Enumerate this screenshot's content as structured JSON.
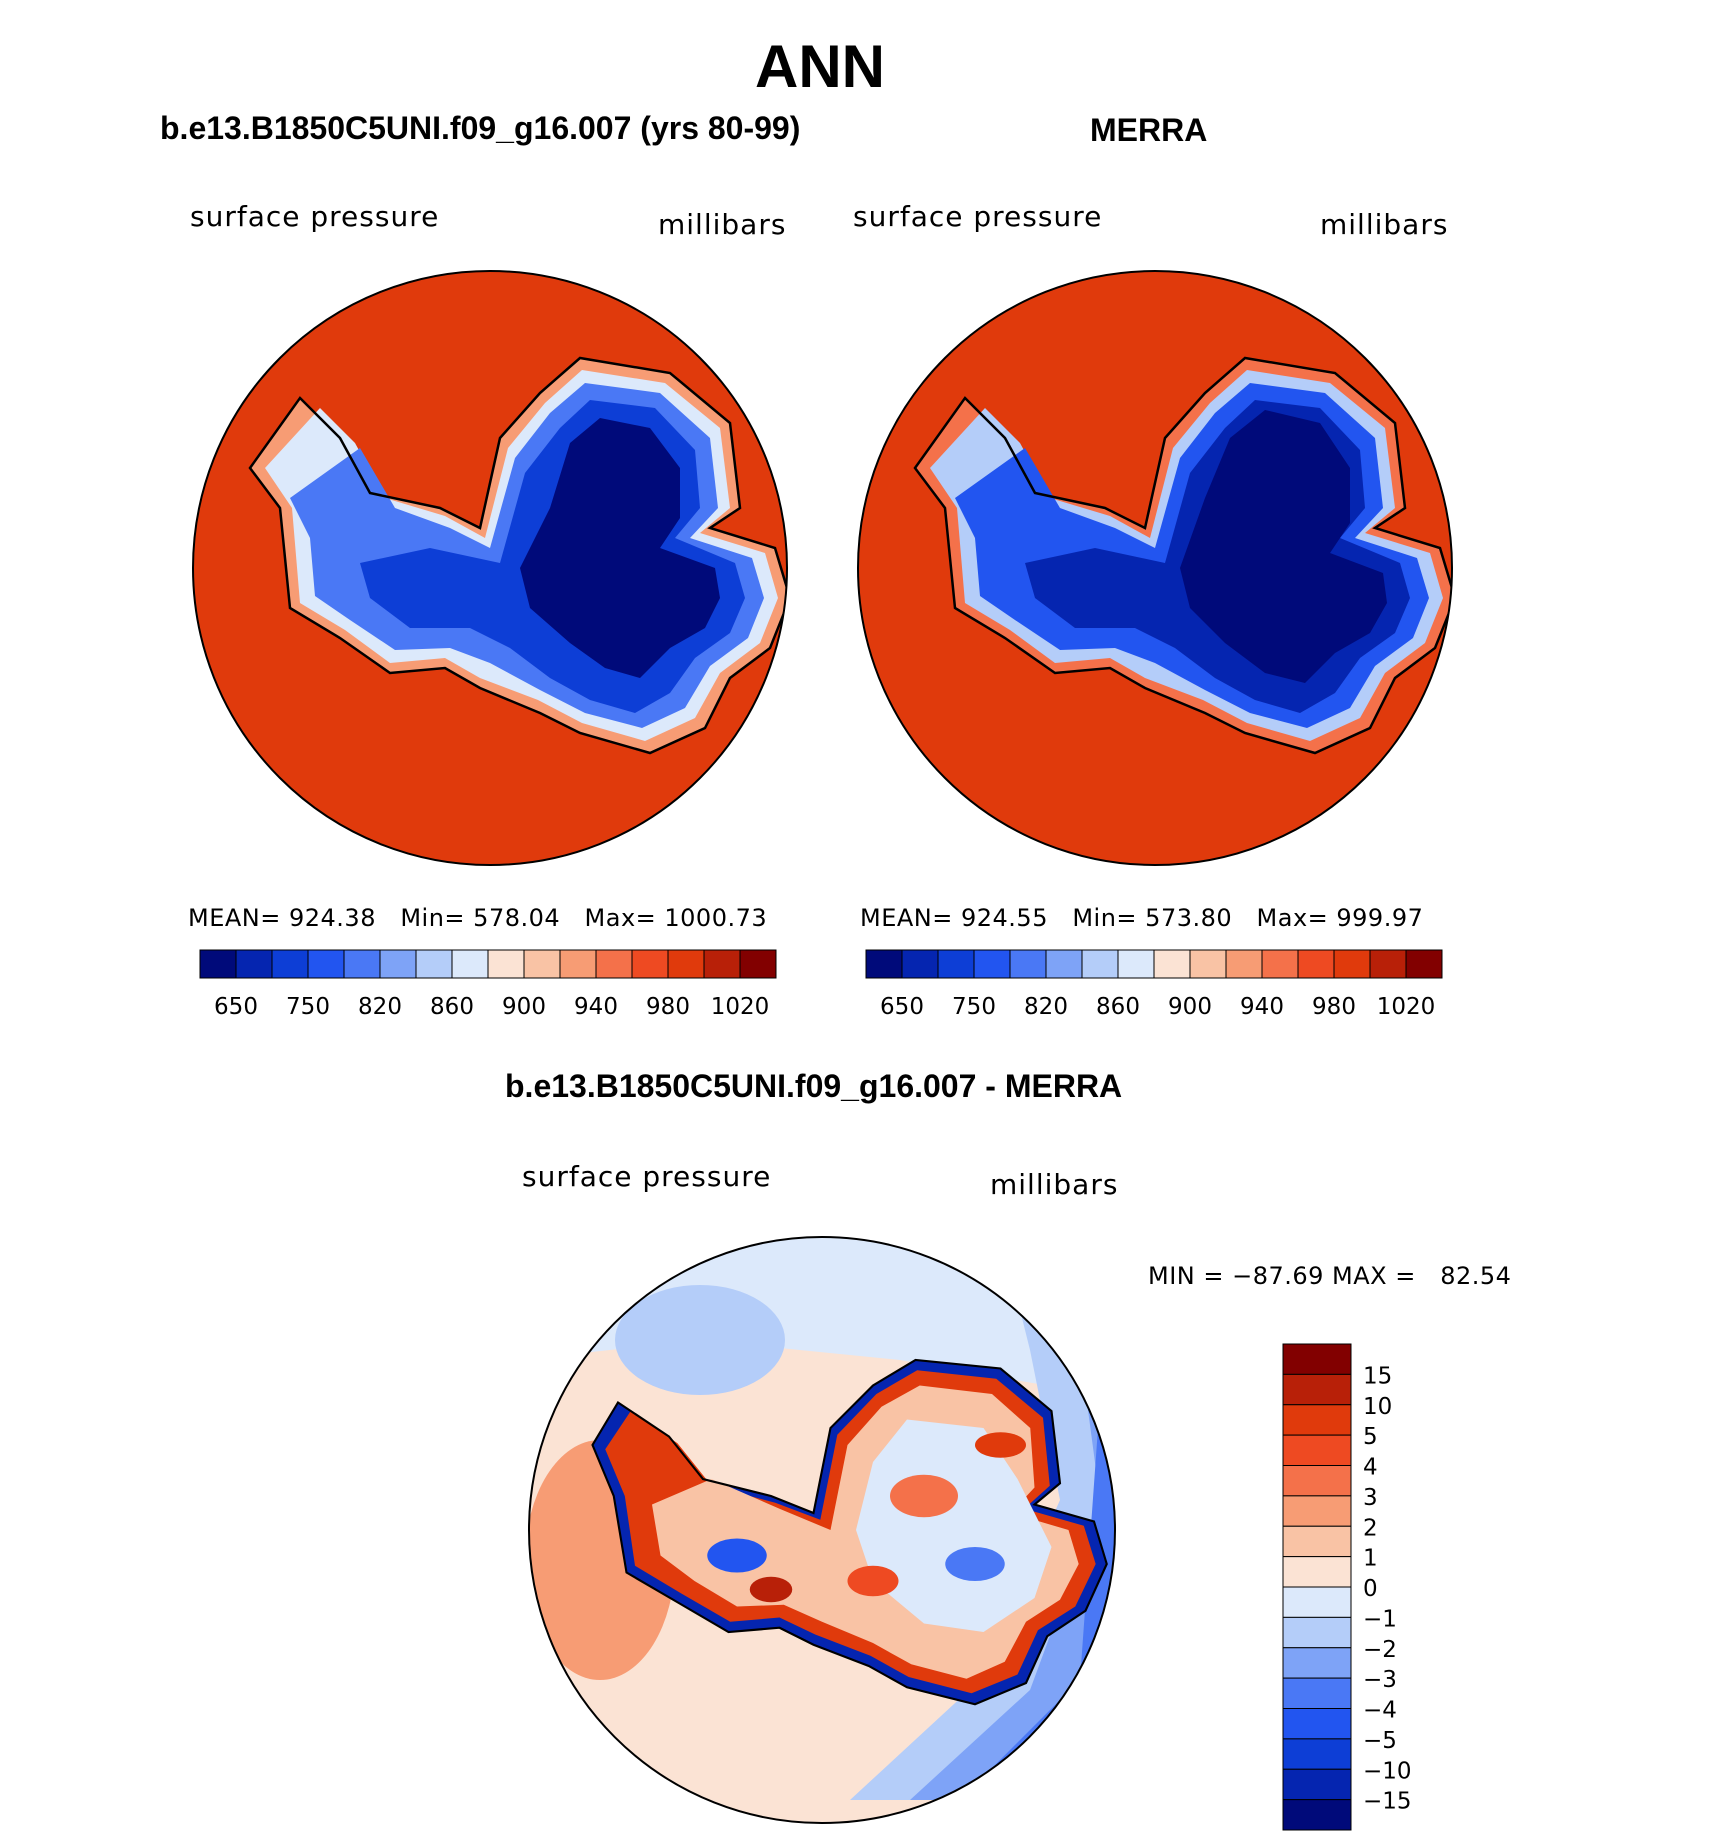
{
  "page_title": "ANN",
  "panels": [
    {
      "title": "b.e13.B1850C5UNI.f09_g16.007 (yrs 80-99)",
      "left_label": "surface pressure",
      "right_label": "millibars",
      "stats": "MEAN= 924.38   Min= 578.04   Max= 1000.73"
    },
    {
      "title": "MERRA",
      "left_label": "surface pressure",
      "right_label": "millibars",
      "stats": "MEAN= 924.55   Min= 573.80   Max= 999.97"
    }
  ],
  "abs_colorbar": {
    "labels": [
      "650",
      "750",
      "820",
      "860",
      "900",
      "940",
      "980",
      "1020"
    ],
    "colors": [
      "#000a7a",
      "#0525b0",
      "#0d3ed6",
      "#2255f0",
      "#4a78f5",
      "#7ea3f7",
      "#b4cdf9",
      "#dce9fb",
      "#fbe3d4",
      "#f9c3a5",
      "#f79c74",
      "#f4714a",
      "#ee4a22",
      "#e03a0c",
      "#b82008",
      "#820000"
    ]
  },
  "diff_panel": {
    "title": "b.e13.B1850C5UNI.f09_g16.007 - MERRA",
    "left_label": "surface pressure",
    "right_label": "millibars",
    "minmax": "MIN = −87.69 MAX =   82.54"
  },
  "diff_colorbar": {
    "labels": [
      "15",
      "10",
      "5",
      "4",
      "3",
      "2",
      "1",
      "0",
      "−1",
      "−2",
      "−3",
      "−4",
      "−5",
      "−10",
      "−15"
    ],
    "colors": [
      "#820000",
      "#b82008",
      "#e03a0c",
      "#ee4a22",
      "#f4714a",
      "#f79c74",
      "#f9c3a5",
      "#fbe3d4",
      "#dce9fb",
      "#b4cdf9",
      "#7ea3f7",
      "#4a78f5",
      "#2255f0",
      "#0d3ed6",
      "#0525b0",
      "#000a7a"
    ]
  },
  "map_colors": {
    "ocean_absolute": "#e03a0c",
    "land_outline": "#000000"
  }
}
